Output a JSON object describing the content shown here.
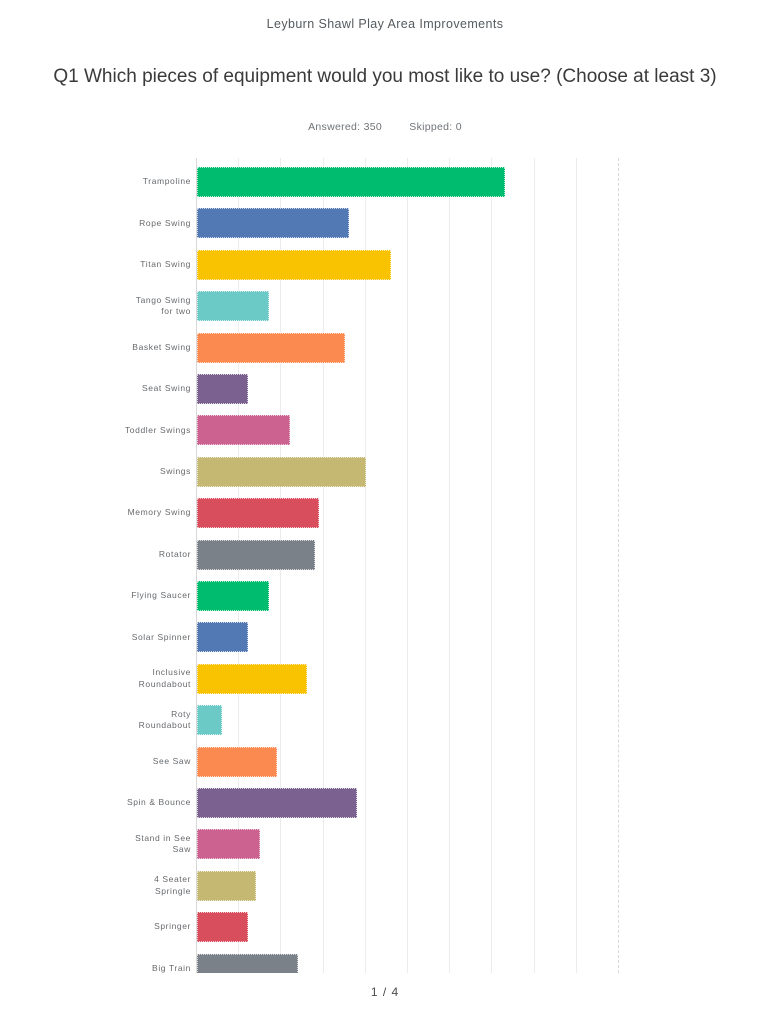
{
  "page": {
    "header": "Leyburn Shawl Play Area Improvements",
    "footer": "1 / 4"
  },
  "question": {
    "title": "Q1 Which pieces of equipment would you most like to use? (Choose at least 3)",
    "answered_label": "Answered: 350",
    "skipped_label": "Skipped: 0"
  },
  "chart_data": {
    "type": "bar",
    "orientation": "horizontal",
    "title": "Q1 Which pieces of equipment would you most like to use? (Choose at least 3)",
    "answered": 350,
    "skipped": 0,
    "x_axis": {
      "min": 0,
      "max": 100,
      "unit": "%",
      "gridline_step": 10,
      "tick_labels_visible": false,
      "grid": true
    },
    "categories": [
      "Trampoline",
      "Rope Swing",
      "Titan Swing",
      "Tango Swing\nfor two",
      "Basket Swing",
      "Seat Swing",
      "Toddler Swings",
      "Swings",
      "Memory Swing",
      "Rotator",
      "Flying Saucer",
      "Solar Spinner",
      "Inclusive\nRoundabout",
      "Roty\nRoundabout",
      "See Saw",
      "Spin & Bounce",
      "Stand in See\nSaw",
      "4 Seater\nSpringle",
      "Springer",
      "Big Train"
    ],
    "values_pct_estimated": [
      73,
      36,
      46,
      17,
      35,
      12,
      22,
      40,
      29,
      28,
      17,
      12,
      26,
      6,
      19,
      38,
      15,
      14,
      12,
      24
    ],
    "colors": [
      "#00bc6f",
      "#5379b4",
      "#f9c301",
      "#6ccac6",
      "#fb8a51",
      "#7a618f",
      "#cc6290",
      "#c5b873",
      "#d94e5c",
      "#7a8189",
      "#00bc6f",
      "#5379b4",
      "#f9c301",
      "#6ccac6",
      "#fb8a51",
      "#7a618f",
      "#cc6290",
      "#c5b873",
      "#d94e5c",
      "#7a8189"
    ],
    "bottom_clipped": true,
    "legend": "none"
  }
}
